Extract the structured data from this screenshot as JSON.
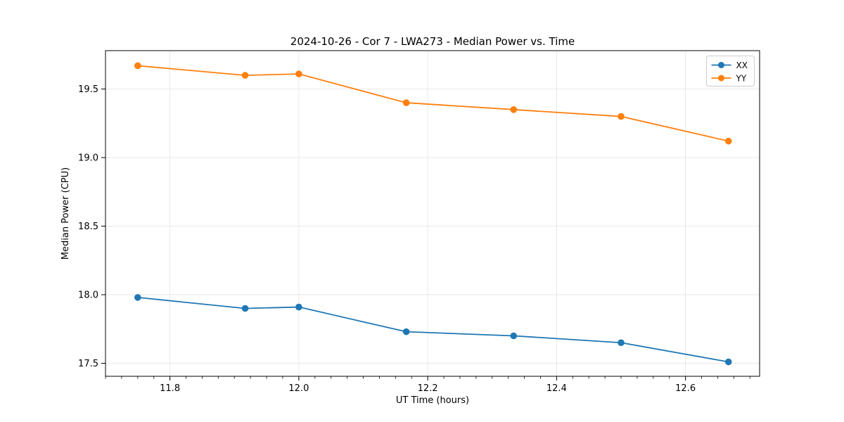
{
  "chart_data": {
    "type": "line",
    "title": "2024-10-26 - Cor 7 - LWA273 - Median Power vs. Time",
    "xlabel": "UT Time (hours)",
    "ylabel": "Median Power (CPU)",
    "x": [
      11.75,
      11.9167,
      12.0,
      12.1667,
      12.3333,
      12.5,
      12.6667
    ],
    "series": [
      {
        "name": "XX",
        "color": "#1f77b4",
        "values": [
          17.98,
          17.9,
          17.91,
          17.73,
          17.7,
          17.65,
          17.51
        ]
      },
      {
        "name": "YY",
        "color": "#ff7f0e",
        "values": [
          19.67,
          19.6,
          19.61,
          19.4,
          19.35,
          19.3,
          19.12
        ]
      }
    ],
    "xlim": [
      11.7,
      12.715
    ],
    "ylim": [
      17.405,
      19.78
    ],
    "xticks": [
      11.8,
      12.0,
      12.2,
      12.4,
      12.6
    ],
    "xtick_labels": [
      "11.8",
      "12.0",
      "12.2",
      "12.4",
      "12.6"
    ],
    "yticks": [
      17.5,
      18.0,
      18.5,
      19.0,
      19.5
    ],
    "ytick_labels": [
      "17.5",
      "18.0",
      "18.5",
      "19.0",
      "19.5"
    ],
    "x_minor_step": 0.025,
    "grid": true,
    "legend_position": "upper right",
    "marker": "circle"
  },
  "colors": {
    "background": "#ffffff",
    "grid": "#e6e6e6",
    "spine": "#000000",
    "tick": "#000000",
    "legend_border": "#cccccc",
    "legend_fill": "#ffffff"
  }
}
